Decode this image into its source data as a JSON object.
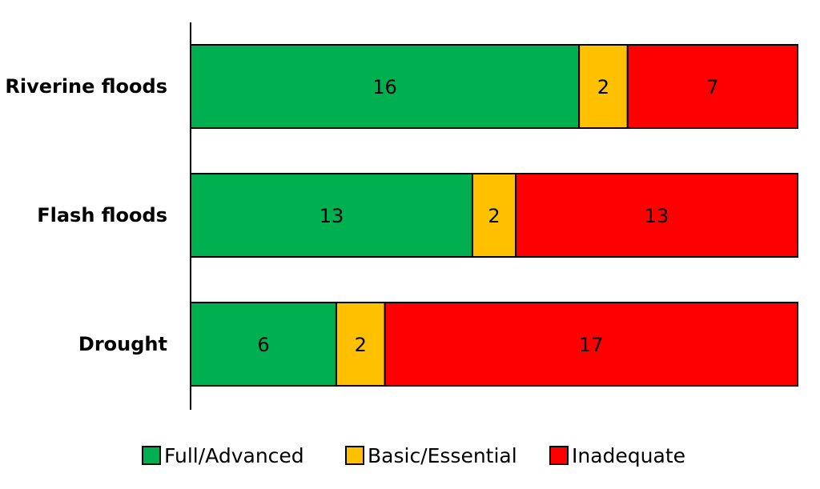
{
  "chart_data": {
    "type": "bar",
    "orientation": "horizontal",
    "stacked": true,
    "normalized_to_total": true,
    "title": "",
    "xlabel": "",
    "ylabel": "",
    "categories": [
      "Riverine floods",
      "Flash floods",
      "Drought"
    ],
    "series": [
      {
        "name": "Full/Advanced",
        "values": [
          16,
          13,
          6
        ],
        "color": "#00b050"
      },
      {
        "name": "Basic/Essential",
        "values": [
          2,
          2,
          2
        ],
        "color": "#ffc000"
      },
      {
        "name": "Inadequate",
        "values": [
          7,
          13,
          17
        ],
        "color": "#ff0000"
      }
    ],
    "legend_position": "bottom",
    "grid": false
  }
}
